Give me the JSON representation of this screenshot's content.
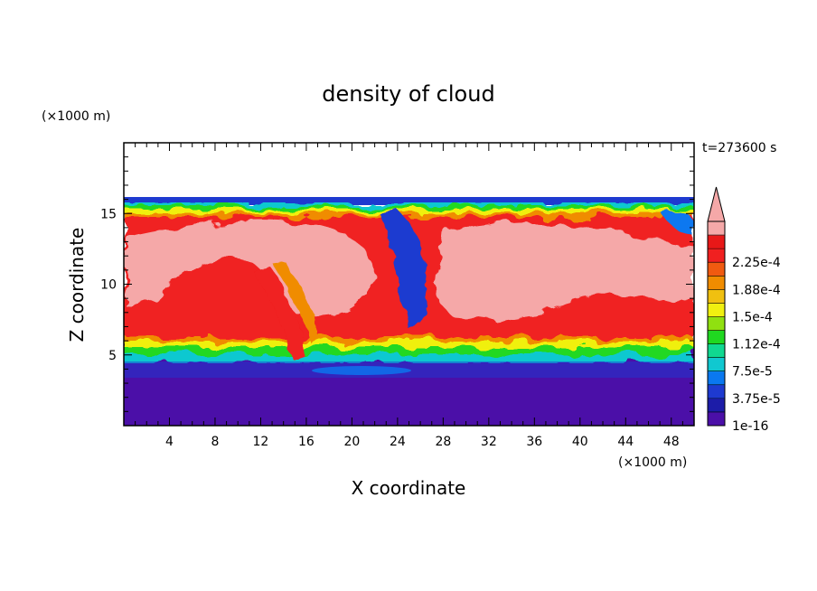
{
  "chart_data": {
    "type": "heatmap",
    "title": "density of cloud",
    "time_label": "t=273600 s",
    "xlabel": "X coordinate",
    "ylabel": "Z coordinate",
    "x_unit": "(×1000 m)",
    "y_unit": "(×1000 m)",
    "xlim": [
      0,
      50
    ],
    "ylim": [
      0,
      20
    ],
    "x_ticks": [
      "4",
      "8",
      "12",
      "16",
      "20",
      "24",
      "28",
      "32",
      "36",
      "40",
      "44",
      "48"
    ],
    "x_tick_values": [
      4,
      8,
      12,
      16,
      20,
      24,
      28,
      32,
      36,
      40,
      44,
      48
    ],
    "y_ticks": [
      "5",
      "10",
      "15"
    ],
    "y_tick_values": [
      5,
      10,
      15
    ],
    "data_top_z": 16,
    "colorbar": {
      "labels": [
        "1e-16",
        "3.75e-5",
        "7.5e-5",
        "1.12e-4",
        "1.5e-4",
        "1.88e-4",
        "2.25e-4"
      ],
      "colors": [
        "#4b0fa8",
        "#1c1ca8",
        "#1e3ad0",
        "#0a78f0",
        "#10c8d0",
        "#10d890",
        "#20d820",
        "#90e010",
        "#f0f010",
        "#f0c010",
        "#f08c00",
        "#f05a10",
        "#f02020",
        "#e81818",
        "#f5a8a8"
      ],
      "overflow_arrow": true
    }
  }
}
